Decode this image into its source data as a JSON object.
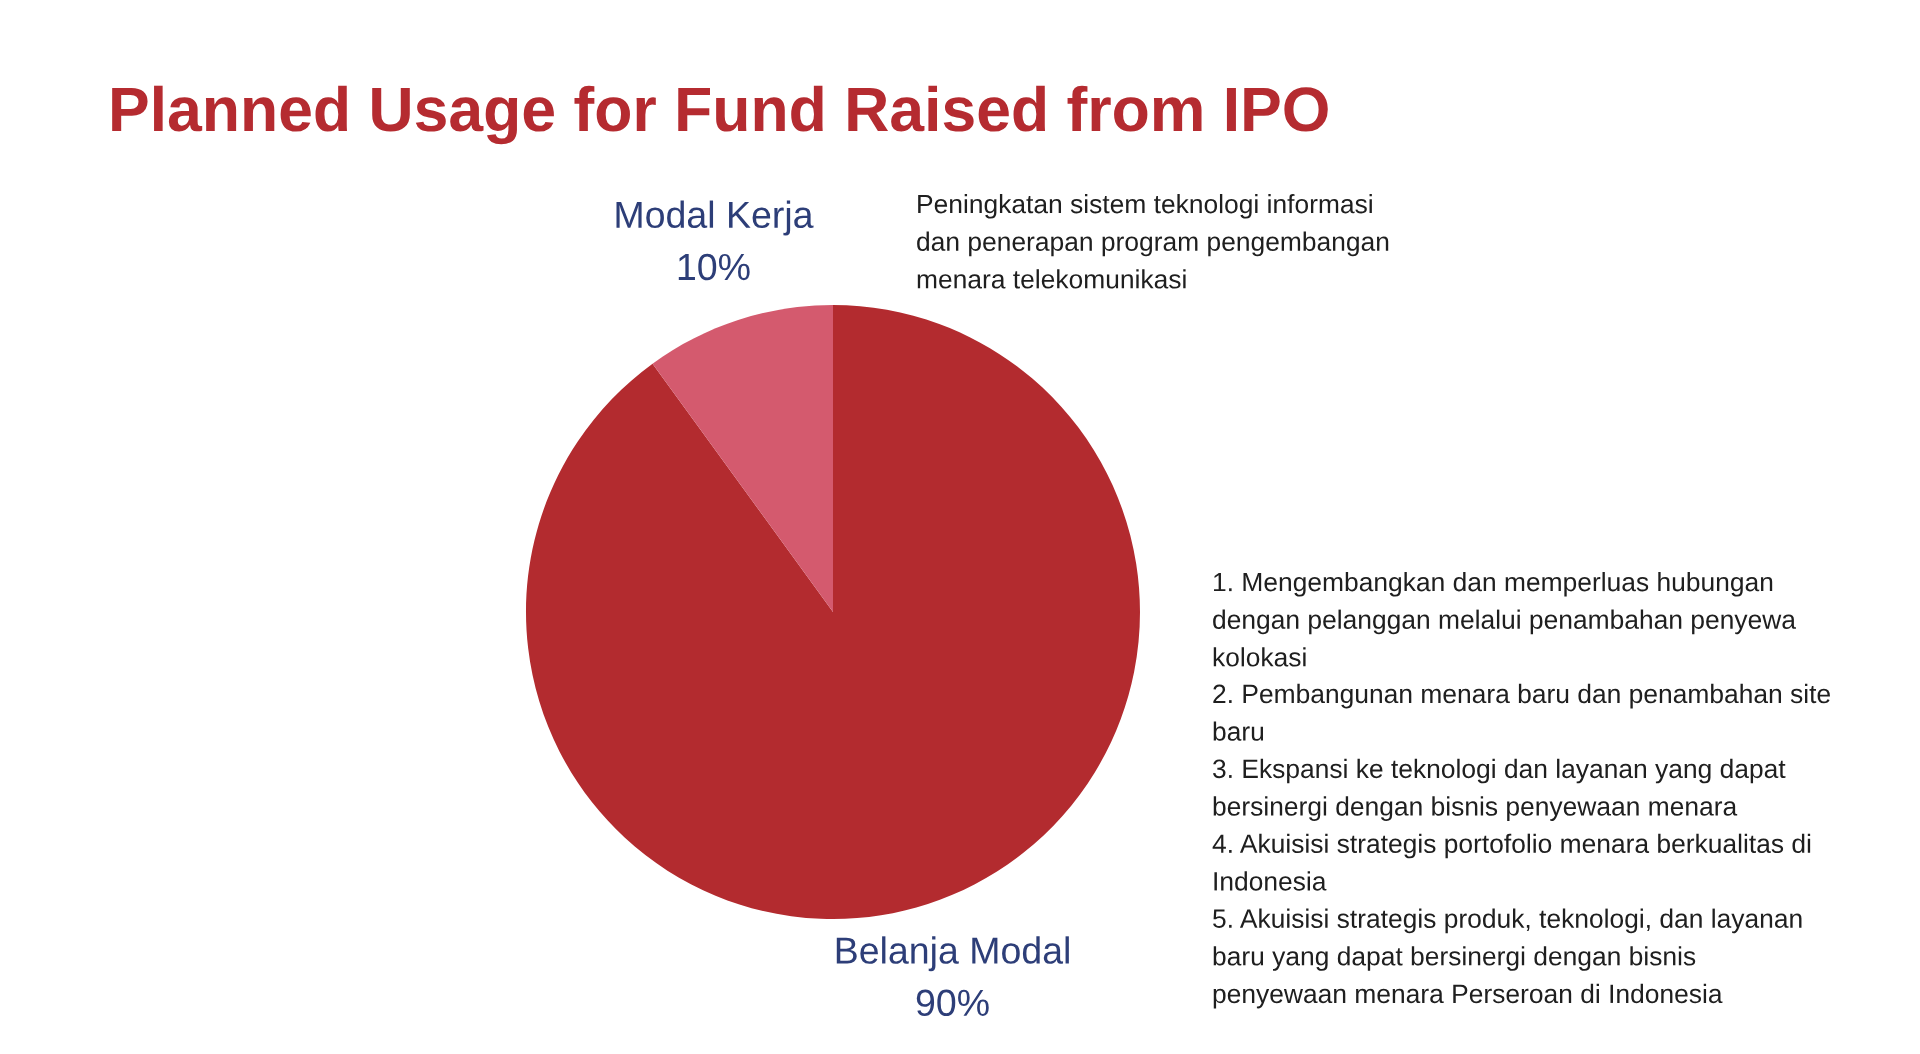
{
  "chart_data": {
    "type": "pie",
    "title": "Planned Usage for Fund Raised from IPO",
    "categories": [
      "Belanja Modal",
      "Modal Kerja"
    ],
    "values": [
      90,
      10
    ],
    "colors": [
      "#b32b2f",
      "#d45a6e"
    ],
    "value_labels": [
      "90%",
      "10%"
    ],
    "annotations": [
      "Peningkatan sistem teknologi informasi\ndan penerapan program pengembangan\nmenara telekomunikasi",
      "1. Mengembangkan dan memperluas hubungan\ndengan pelanggan melalui penambahan penyewa\nkolokasi",
      "2. Pembangunan menara baru dan penambahan site\nbaru",
      "3. Ekspansi ke teknologi dan layanan yang dapat\nbersinergi dengan bisnis penyewaan menara",
      "4. Akuisisi strategis portofolio menara berkualitas di\nIndonesia",
      "5. Akuisisi strategis produk, teknologi, dan layanan\nbaru yang dapat bersinergi dengan bisnis\npenyewaan menara Perseroan di Indonesia"
    ]
  }
}
